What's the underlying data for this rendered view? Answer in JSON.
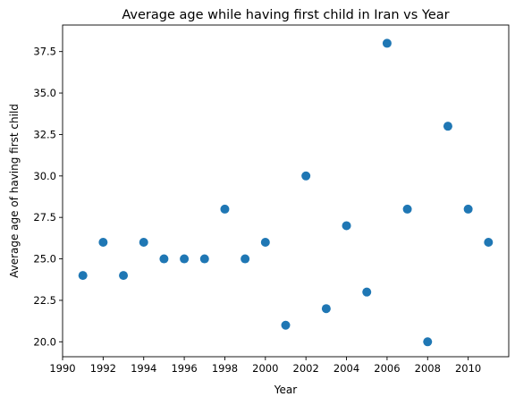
{
  "chart_data": {
    "type": "scatter",
    "title": "Average age while having first child in Iran vs Year",
    "xlabel": "Year",
    "ylabel": "Average age of having first child",
    "xlim": [
      1990,
      2012
    ],
    "ylim": [
      19.1,
      39.1
    ],
    "xticks": [
      1990,
      1992,
      1994,
      1996,
      1998,
      2000,
      2002,
      2004,
      2006,
      2008,
      2010
    ],
    "xtick_labels": [
      "1990",
      "1992",
      "1994",
      "1996",
      "1998",
      "2000",
      "2002",
      "2004",
      "2006",
      "2008",
      "2010"
    ],
    "yticks": [
      20.0,
      22.5,
      25.0,
      27.5,
      30.0,
      32.5,
      35.0,
      37.5
    ],
    "ytick_labels": [
      "20.0",
      "22.5",
      "25.0",
      "27.5",
      "30.0",
      "32.5",
      "35.0",
      "37.5"
    ],
    "grid": false,
    "marker_color": "#1f77b4",
    "x": [
      1991,
      1992,
      1993,
      1994,
      1995,
      1996,
      1997,
      1998,
      1999,
      2000,
      2001,
      2002,
      2003,
      2004,
      2005,
      2006,
      2007,
      2008,
      2009,
      2010,
      2011
    ],
    "y": [
      24,
      26,
      24,
      26,
      25,
      25,
      25,
      28,
      25,
      26,
      21,
      30,
      22,
      27,
      23,
      38,
      28,
      20,
      33,
      28,
      26
    ]
  }
}
